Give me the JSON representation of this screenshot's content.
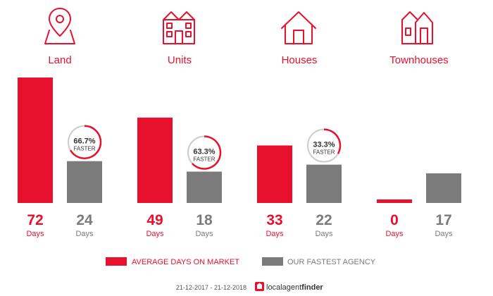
{
  "chart_data": {
    "type": "bar",
    "categories": [
      "Land",
      "Units",
      "Houses",
      "Townhouses"
    ],
    "series": [
      {
        "name": "AVERAGE DAYS ON MARKET",
        "values": [
          72,
          49,
          33,
          0
        ],
        "color": "#e8112d"
      },
      {
        "name": "OUR FASTEST AGENCY",
        "values": [
          24,
          18,
          22,
          17
        ],
        "color": "#7b7b7b"
      }
    ],
    "value_unit": "Days",
    "ylim": [
      0,
      72
    ],
    "faster_badges": [
      {
        "category": "Land",
        "percent": 66.7,
        "label": "66.7%",
        "sub": "FASTER"
      },
      {
        "category": "Units",
        "percent": 63.3,
        "label": "63.3%",
        "sub": "FASTER"
      },
      {
        "category": "Houses",
        "percent": 33.3,
        "label": "33.3%",
        "sub": "FASTER"
      }
    ],
    "icons": [
      "map-pin-icon",
      "apartment-building-icon",
      "house-icon",
      "townhouse-icon"
    ],
    "legend_position": "bottom",
    "grid": false
  },
  "footer": {
    "date_range": "21-12-2017 - 21-12-2018",
    "brand_local": "localagent",
    "brand_finder": "finder"
  }
}
